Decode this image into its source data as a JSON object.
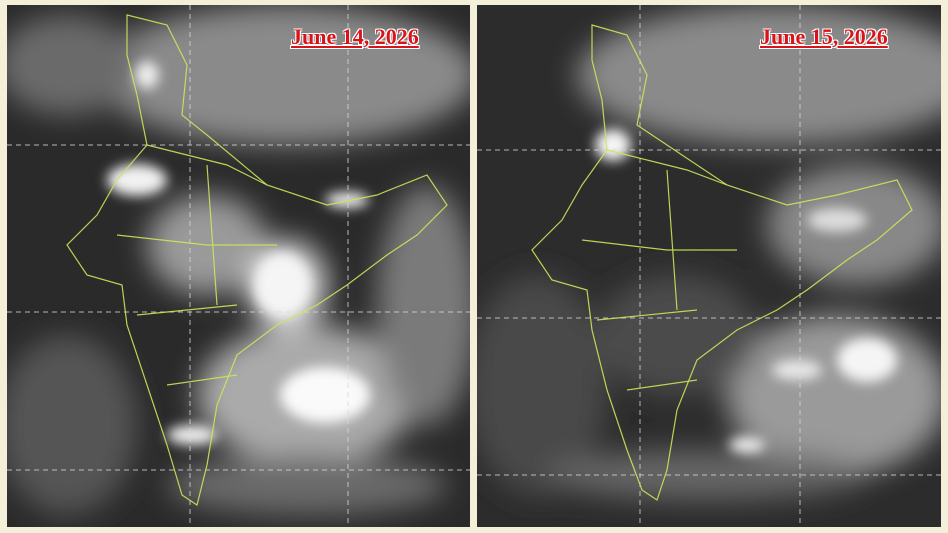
{
  "panels": [
    {
      "date": "June 14, 2026"
    },
    {
      "date": "June 15, 2026"
    }
  ]
}
